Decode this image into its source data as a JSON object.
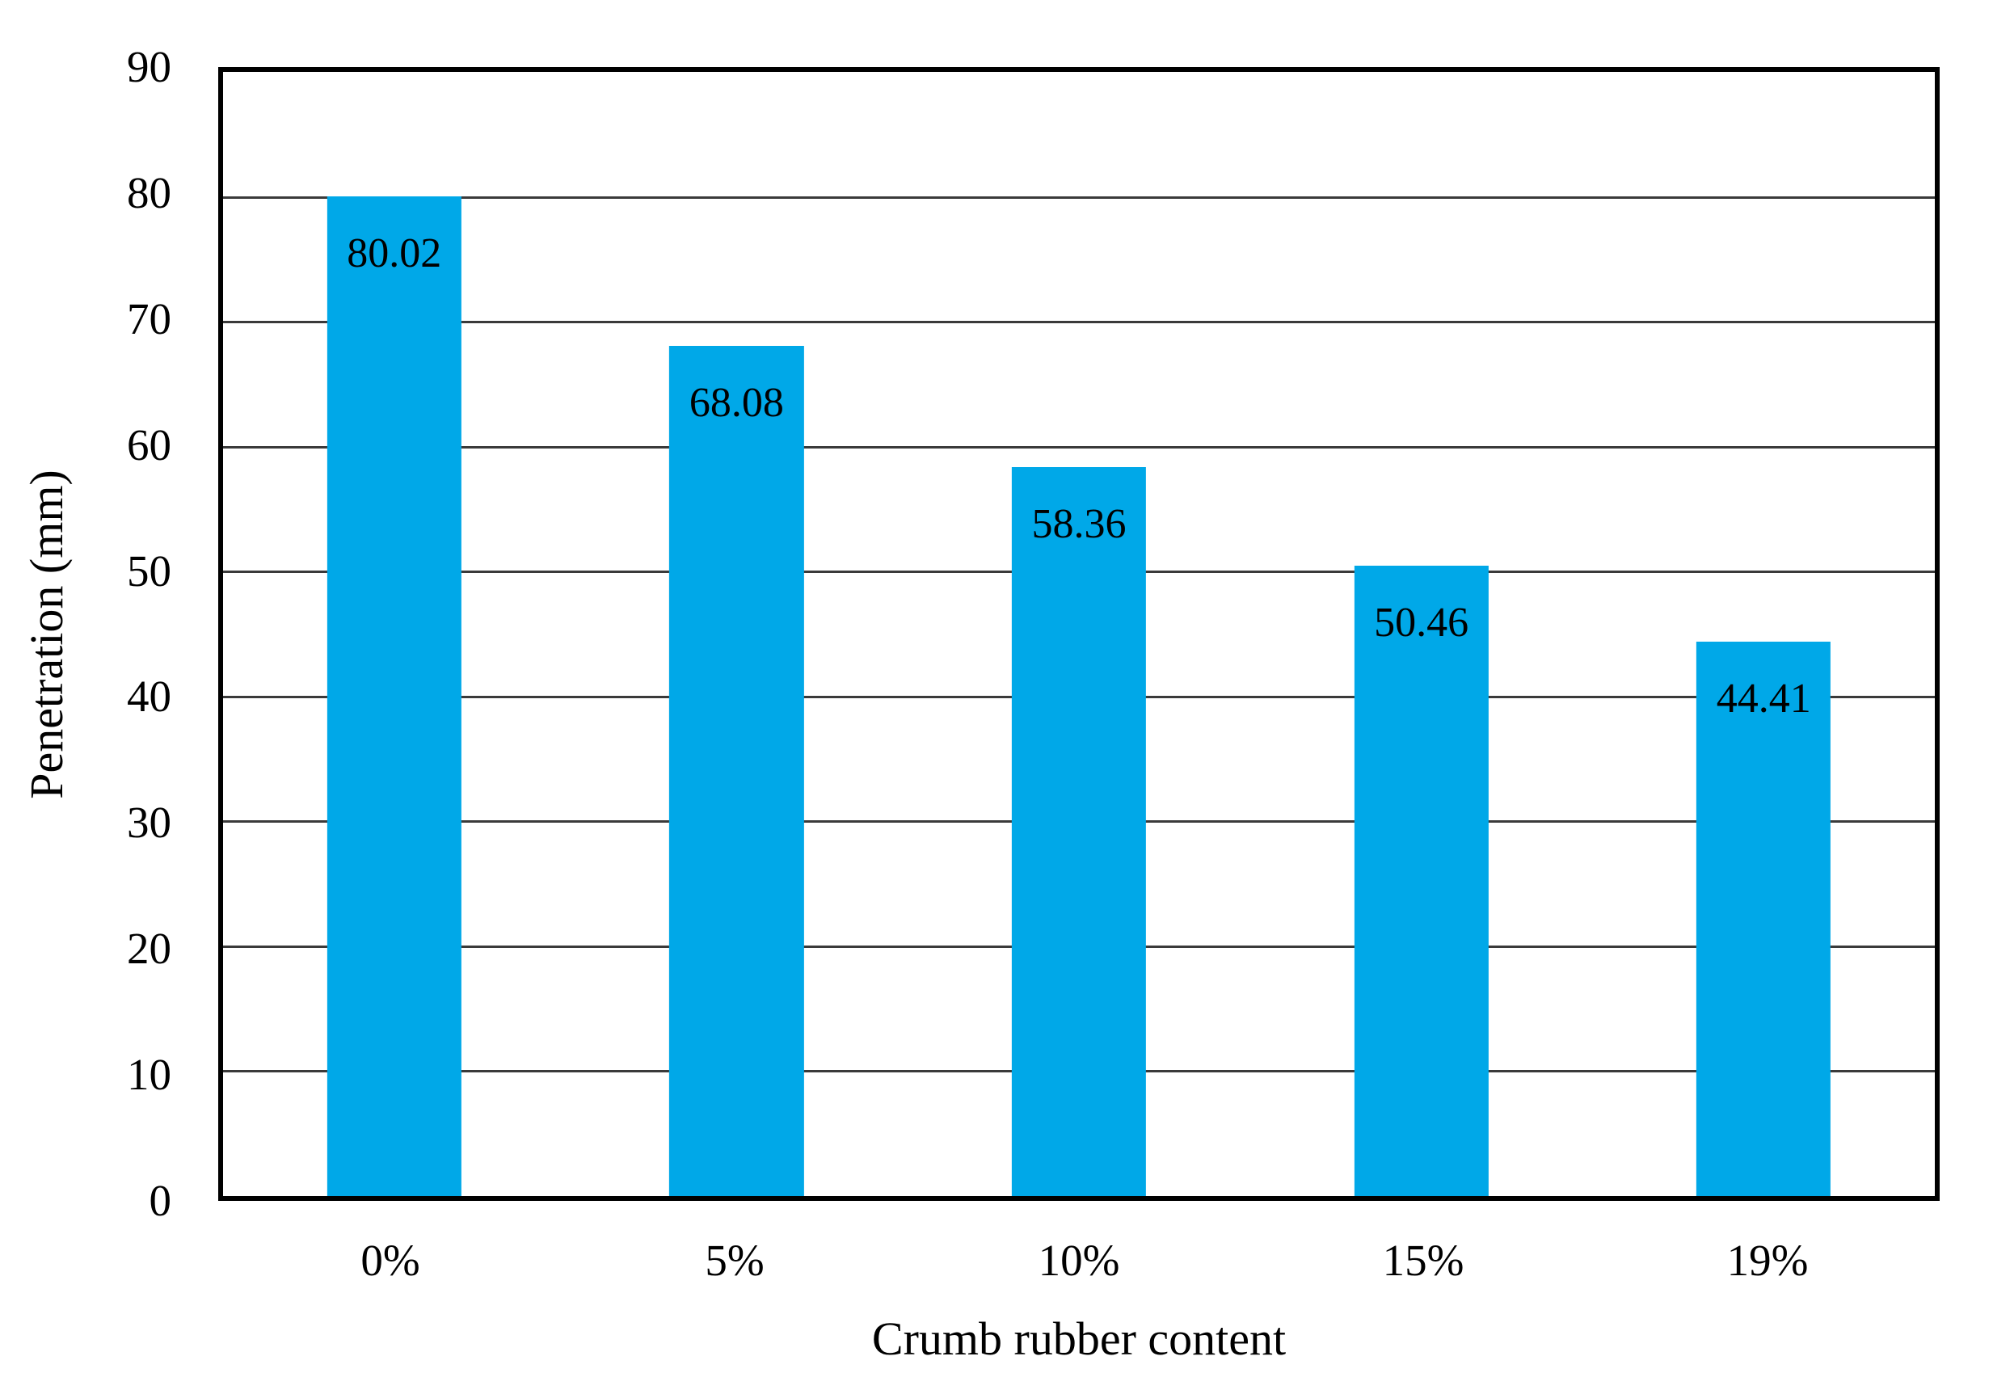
{
  "chart_data": {
    "type": "bar",
    "title": "",
    "categories": [
      "0%",
      "5%",
      "10%",
      "15%",
      "19%"
    ],
    "values": [
      80.02,
      68.08,
      58.36,
      50.46,
      44.41
    ],
    "bar_labels": [
      "80.02",
      "68.08",
      "58.36",
      "50.46",
      "44.41"
    ],
    "xlabel": "Crumb rubber content",
    "ylabel": "Penetration (mm)",
    "ylim": [
      0,
      90
    ],
    "yticks": [
      0,
      10,
      20,
      30,
      40,
      50,
      60,
      70,
      80,
      90
    ],
    "grid": "horizontal-on",
    "legend": "none",
    "colors": {
      "bar": "#00a8e8",
      "grid": "#3a3a3a",
      "frame": "#000000",
      "label_text": "#000000",
      "background": "#ffffff"
    }
  }
}
